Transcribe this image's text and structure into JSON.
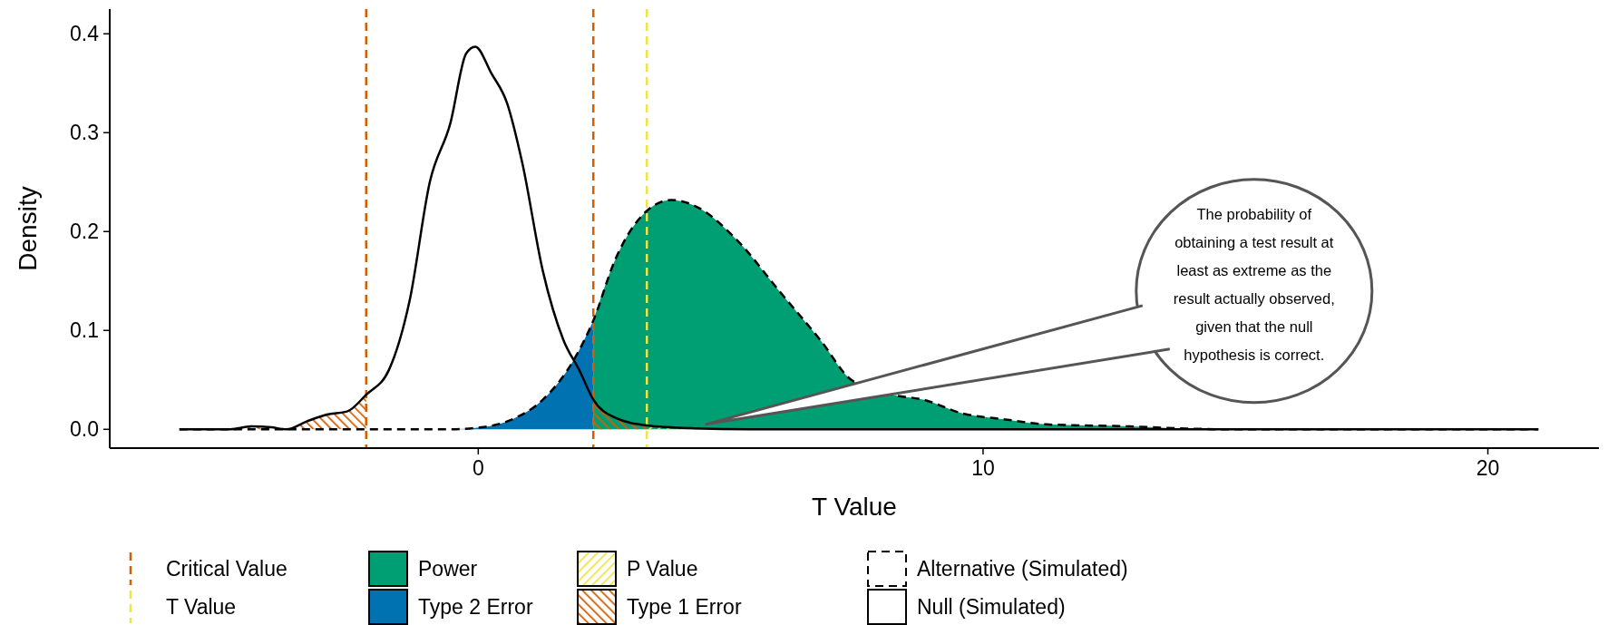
{
  "chart_data": {
    "type": "area",
    "xlabel": "T Value",
    "ylabel": "Density",
    "xlim": [
      -7.3,
      22.2
    ],
    "ylim": [
      -0.019,
      0.425
    ],
    "xticks": [
      0,
      10,
      20
    ],
    "yticks": [
      {
        "value": 0,
        "label": "0.0"
      },
      0.1,
      0.2,
      0.3,
      0.4
    ],
    "grid": false,
    "legend": "bottom",
    "ref_lines": [
      {
        "axis": "x",
        "value": -2.22,
        "label": "Critical Value",
        "color": "#d55e00",
        "line_style": "dashed"
      },
      {
        "axis": "x",
        "value": 2.28,
        "color": "#d55e00",
        "line_style": "dashed"
      },
      {
        "axis": "x",
        "value": 3.34,
        "label": "T Value",
        "color": "#f0e442",
        "line_style": "dashed"
      }
    ],
    "series": [
      {
        "name": "Power",
        "color": "#009e73",
        "x": [
          2.28,
          2.7,
          3.32,
          3.83,
          4.33,
          5.15,
          5.96,
          6.78,
          7.39,
          8.2,
          8.81,
          9.6,
          10.44,
          11.25,
          12.9,
          13.9,
          14.9
        ],
        "values": [
          0.11,
          0.17,
          0.22,
          0.232,
          0.225,
          0.19,
          0.14,
          0.09,
          0.05,
          0.035,
          0.03,
          0.016,
          0.01,
          0.005,
          0.003,
          0.001,
          0
        ]
      },
      {
        "name": "Type 2 Error",
        "color": "#0072b2",
        "x": [
          -0.55,
          0.06,
          0.67,
          1.28,
          1.89,
          2.28
        ],
        "values": [
          0,
          0.002,
          0.01,
          0.03,
          0.07,
          0.11
        ]
      },
      {
        "name": "P Value",
        "color": "#f0e442",
        "x": [
          3.34,
          4.3,
          5.35
        ],
        "values": [
          0.004,
          0.001,
          0
        ]
      },
      {
        "name": "Type 1 Error",
        "color": "#d55e00",
        "x": [
          -4.93,
          -4.5,
          -4.1,
          -3.8,
          -3.4,
          -3.0,
          -2.6,
          -2.22,
          0,
          2.28,
          2.7,
          3.34
        ],
        "values": [
          0,
          0.003,
          0.002,
          0,
          0.008,
          0.015,
          0.018,
          0.035,
          null,
          0.03,
          0.012,
          0.004
        ]
      },
      {
        "name": "Alternative (Simulated)",
        "type": "line",
        "color": "#000000",
        "line_style": "dashed",
        "x": [
          -5.92,
          -0.55,
          0.06,
          0.67,
          1.28,
          1.89,
          2.28,
          2.7,
          3.32,
          3.83,
          4.33,
          5.15,
          5.96,
          6.78,
          7.39,
          8.2,
          8.81,
          9.6,
          10.44,
          11.25,
          12.9,
          13.9,
          14.9,
          21
        ],
        "values": [
          0,
          0,
          0.002,
          0.01,
          0.03,
          0.07,
          0.11,
          0.17,
          0.22,
          0.232,
          0.225,
          0.19,
          0.14,
          0.09,
          0.05,
          0.035,
          0.03,
          0.016,
          0.01,
          0.005,
          0.003,
          0.001,
          0,
          0
        ]
      },
      {
        "name": "Null (Simulated)",
        "type": "line",
        "color": "#000000",
        "line_style": "solid",
        "x": [
          -5.92,
          -4.93,
          -4.5,
          -4.1,
          -3.8,
          -3.4,
          -3.0,
          -2.6,
          -2.22,
          -1.77,
          -1.36,
          -0.96,
          -0.55,
          -0.24,
          -0.06,
          0.26,
          0.57,
          0.87,
          1.28,
          1.69,
          2.0,
          2.28,
          2.7,
          3.34,
          4.3,
          5.35,
          21
        ],
        "values": [
          0,
          0,
          0.003,
          0.002,
          0,
          0.008,
          0.015,
          0.018,
          0.035,
          0.06,
          0.13,
          0.25,
          0.31,
          0.38,
          0.387,
          0.36,
          0.33,
          0.27,
          0.16,
          0.09,
          0.06,
          0.03,
          0.012,
          0.004,
          0.001,
          0,
          0
        ]
      }
    ],
    "annotations": [
      {
        "text": "The probability of obtaining a test result at least as extreme as the result actually observed, given that the null hypothesis is correct.",
        "x": 4.5,
        "y": 0.005
      }
    ]
  }
}
